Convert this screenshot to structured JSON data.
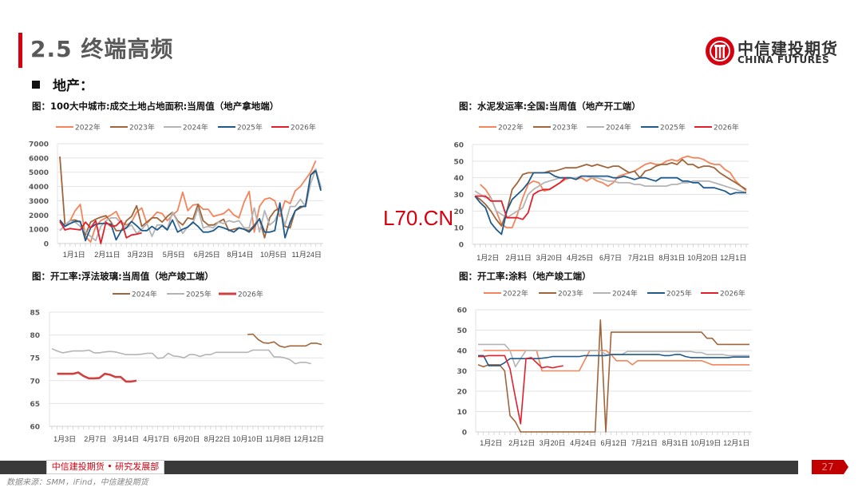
{
  "header": {
    "title": "2.5 终端高频",
    "section": "地产：",
    "logo_cn": "中信建投期货",
    "logo_en": "CHINA FUTURES"
  },
  "watermark": "L70.CN",
  "footer": {
    "dept": "中信建投期货 • 研究发展部",
    "page": "27",
    "source": "数据来源：SMM，iFind，中信建投期货"
  },
  "colors": {
    "y2022": "#F4845A",
    "y2023": "#A0653A",
    "y2024": "#B4B4B4",
    "y2025": "#1F5A8C",
    "y2026": "#E0202C",
    "accent": "#D7000F"
  },
  "chart_data": [
    {
      "type": "line",
      "title": "图：100大中城市:成交土地占地面积:当周值（地产拿地端）",
      "ylim": [
        0,
        7000
      ],
      "ystep": 1000,
      "n_points": 52,
      "x_ticks": [
        {
          "label": "1月1日",
          "i": 0
        },
        {
          "label": "2月11日",
          "i": 6
        },
        {
          "label": "3月23日",
          "i": 12
        },
        {
          "label": "5月5日",
          "i": 18
        },
        {
          "label": "6月25日",
          "i": 25
        },
        {
          "label": "8月14日",
          "i": 32
        },
        {
          "label": "10月5日",
          "i": 39
        },
        {
          "label": "11月24日",
          "i": 46
        }
      ],
      "series": [
        {
          "name": "2022年",
          "color": "#F4845A",
          "values": [
            1500,
            1200,
            1600,
            2300,
            2750,
            500,
            100,
            1200,
            1600,
            1800,
            2000,
            2250,
            1500,
            1300,
            1500,
            2200,
            2500,
            1400,
            1800,
            2200,
            2100,
            1600,
            2000,
            2300,
            3600,
            2300,
            2700,
            2750,
            2400,
            2400,
            1900,
            2000,
            2100,
            2400,
            2000,
            1800,
            2900,
            3650,
            800,
            2600,
            3100,
            3200,
            3000,
            1900,
            3000,
            2800,
            3700,
            4000,
            4500,
            5000,
            5800,
            null
          ]
        },
        {
          "name": "2023年",
          "color": "#A0653A",
          "values": [
            6100,
            1300,
            1600,
            1650,
            1500,
            600,
            1500,
            1700,
            1850,
            1950,
            1500,
            900,
            900,
            1600,
            1900,
            2650,
            1200,
            1500,
            1800,
            1800,
            1500,
            1900,
            2200,
            1600,
            1300,
            1800,
            1700,
            2750,
            1600,
            1300,
            1300,
            1500,
            1700,
            900,
            1000,
            1100,
            1000,
            900,
            1300,
            1700,
            400,
            1800,
            2300,
            2500,
            1200,
            1100,
            2300,
            2500,
            2700,
            4800,
            5200,
            3800
          ]
        },
        {
          "name": "2024年",
          "color": "#B4B4B4",
          "values": [
            900,
            1300,
            1600,
            1500,
            1200,
            800,
            500,
            200,
            1200,
            1600,
            1800,
            1800,
            1400,
            1100,
            1300,
            700,
            1000,
            1400,
            500,
            1300,
            1300,
            1000,
            2200,
            1500,
            700,
            1200,
            1400,
            2500,
            1100,
            1200,
            1100,
            1500,
            1400,
            1600,
            1500,
            1600,
            1100,
            1100,
            2500,
            800,
            2300,
            1300,
            1600,
            2400,
            1300,
            2600,
            2600,
            3100,
            2600,
            4200,
            5200,
            4000
          ]
        },
        {
          "name": "2025年",
          "color": "#1F5A8C",
          "values": [
            1650,
            1200,
            1400,
            1550,
            1550,
            200,
            1100,
            1350,
            1400,
            1400,
            1350,
            250,
            900,
            1100,
            1550,
            1250,
            900,
            900,
            1200,
            950,
            1250,
            950,
            1650,
            800,
            1000,
            1150,
            1500,
            1200,
            800,
            800,
            900,
            1200,
            1100,
            950,
            800,
            1100,
            1000,
            800,
            1200,
            1750,
            800,
            800,
            900,
            2850,
            400,
            1500,
            2300,
            2600,
            2600,
            4800,
            5100,
            3700
          ]
        },
        {
          "name": "2026年",
          "color": "#E0202C",
          "values": [
            1550,
            950,
            1050,
            1000,
            950,
            1500,
            1100,
            1600,
            0,
            1500,
            1200,
            1250,
            1600,
            400,
            600,
            650,
            750
          ]
        }
      ]
    },
    {
      "type": "line",
      "title": "图：水泥发运率:全国:当周值（地产开工端）",
      "ylim": [
        0,
        60
      ],
      "ystep": 10,
      "n_points": 52,
      "x_ticks": [
        {
          "label": "1月2日",
          "i": 0
        },
        {
          "label": "2月11日",
          "i": 6
        },
        {
          "label": "3月20日",
          "i": 11
        },
        {
          "label": "4月25日",
          "i": 16
        },
        {
          "label": "6月7日",
          "i": 22
        },
        {
          "label": "7月21日",
          "i": 28
        },
        {
          "label": "8月31日",
          "i": 34
        },
        {
          "label": "10月20日",
          "i": 40
        },
        {
          "label": "12月1日",
          "i": 46
        }
      ],
      "series": [
        {
          "name": "2022年",
          "color": "#F4845A",
          "values": [
            null,
            36,
            33,
            28,
            20,
            12,
            10,
            10,
            18,
            28,
            36,
            38,
            37,
            32,
            33,
            35,
            37,
            39,
            40,
            39,
            40,
            38,
            40,
            38,
            37,
            35,
            37,
            41,
            42,
            43,
            44,
            46,
            48,
            49,
            48,
            48,
            50,
            51,
            50,
            52,
            53,
            52,
            52,
            51,
            49,
            48,
            48,
            45,
            43,
            38,
            35,
            32
          ]
        },
        {
          "name": "2023年",
          "color": "#A0653A",
          "values": [
            29,
            27,
            24,
            20,
            15,
            11,
            20,
            33,
            37,
            42,
            43,
            43,
            43,
            43,
            44,
            44,
            45,
            46,
            46,
            46,
            47,
            48,
            47,
            48,
            47,
            46,
            47,
            47,
            45,
            43,
            44,
            40,
            44,
            45,
            47,
            48,
            48,
            49,
            48,
            51,
            48,
            48,
            46,
            47,
            47,
            46,
            43,
            41,
            39,
            37,
            35,
            33
          ]
        },
        {
          "name": "2024年",
          "color": "#B4B4B4",
          "values": [
            32,
            30,
            28,
            28,
            20,
            18,
            16,
            18,
            20,
            22,
            30,
            33,
            35,
            37,
            38,
            39,
            40,
            40,
            40,
            40,
            41,
            41,
            40,
            40,
            39,
            38,
            38,
            37,
            37,
            37,
            36,
            36,
            35,
            35,
            35,
            35,
            35,
            36,
            36,
            37,
            37,
            38,
            38,
            38,
            38,
            37,
            36,
            35,
            34,
            33,
            32,
            31
          ]
        },
        {
          "name": "2025年",
          "color": "#1F5A8C",
          "values": [
            29,
            25,
            22,
            13,
            9,
            6,
            20,
            27,
            30,
            33,
            37,
            43,
            43,
            43,
            43,
            41,
            40,
            40,
            40,
            39,
            41,
            41,
            41,
            41,
            41,
            41,
            40,
            40,
            41,
            40,
            39,
            40,
            40,
            39,
            38,
            40,
            40,
            40,
            40,
            38,
            38,
            37,
            37,
            34,
            34,
            34,
            33,
            32,
            30,
            31,
            31,
            31
          ]
        },
        {
          "name": "2026年",
          "color": "#E0202C",
          "values": [
            29,
            29,
            29,
            26,
            26,
            26,
            16,
            16,
            16,
            15,
            19,
            30,
            32,
            33,
            33,
            35,
            37,
            40
          ]
        }
      ]
    },
    {
      "type": "line",
      "title": "图：开工率:浮法玻璃:当周值（地产竣工端）",
      "ylim": [
        60,
        85
      ],
      "ystep": 5,
      "n_points": 52,
      "x_ticks": [
        {
          "label": "1月3日",
          "i": 0
        },
        {
          "label": "2月7日",
          "i": 5
        },
        {
          "label": "3月14日",
          "i": 10
        },
        {
          "label": "4月17日",
          "i": 15
        },
        {
          "label": "6月20日",
          "i": 24
        },
        {
          "label": "8月22日",
          "i": 33
        },
        {
          "label": "10月10日",
          "i": 40
        },
        {
          "label": "11月8日",
          "i": 44
        },
        {
          "label": "12月12日",
          "i": 49
        }
      ],
      "series": [
        {
          "name": "2024年",
          "color": "#A0653A",
          "values": [
            null,
            null,
            null,
            null,
            null,
            null,
            null,
            null,
            null,
            null,
            null,
            null,
            null,
            null,
            null,
            null,
            null,
            null,
            null,
            null,
            null,
            null,
            null,
            null,
            null,
            null,
            null,
            null,
            null,
            null,
            null,
            null,
            null,
            null,
            null,
            null,
            null,
            80.1,
            80.2,
            79,
            78.3,
            78.2,
            78.5,
            77.6,
            77.3,
            77.6,
            77.6,
            77.6,
            77.6,
            78.2,
            78.2,
            77.9
          ]
        },
        {
          "name": "2025年",
          "color": "#B4B4B4",
          "values": [
            77,
            76.5,
            76.1,
            76.3,
            76.5,
            76.5,
            76.5,
            76.7,
            76.1,
            76.1,
            76.3,
            76.4,
            76.3,
            76,
            75.7,
            75.7,
            75.7,
            75.8,
            76,
            76,
            74.9,
            75,
            76,
            75.4,
            75.3,
            75,
            75.7,
            75.7,
            75.3,
            75.7,
            75.7,
            76.2,
            76.2,
            76.2,
            76.2,
            76.2,
            76.2,
            76.2,
            76.7,
            76.7,
            76.7,
            76.7,
            75.2,
            75.2,
            75,
            74.6,
            73.7,
            74,
            74,
            73.7
          ]
        },
        {
          "name": "2026年",
          "color": "#D04040",
          "values": [
            null,
            71.5,
            71.5,
            71.5,
            71.5,
            71.8,
            71,
            70.5,
            70.5,
            70.6,
            71.5,
            71.3,
            70.8,
            70.8,
            69.8,
            69.8,
            70
          ]
        }
      ]
    },
    {
      "type": "line",
      "title": "图：开工率:涂料（地产竣工端）",
      "ylim": [
        0,
        60
      ],
      "ystep": 10,
      "n_points": 52,
      "x_ticks": [
        {
          "label": "1月2日",
          "i": 0
        },
        {
          "label": "2月12日",
          "i": 6
        },
        {
          "label": "3月20日",
          "i": 11
        },
        {
          "label": "4月24日",
          "i": 16
        },
        {
          "label": "6月12日",
          "i": 23
        },
        {
          "label": "7月21日",
          "i": 28
        },
        {
          "label": "8月31日",
          "i": 34
        },
        {
          "label": "10月19日",
          "i": 41
        },
        {
          "label": "12月1日",
          "i": 47
        }
      ],
      "series": [
        {
          "name": "2022年",
          "color": "#F4845A",
          "values": [
            null,
            40,
            40,
            40,
            40,
            40,
            40,
            40,
            40,
            40,
            40,
            40,
            30,
            30,
            30,
            30,
            30,
            30,
            30,
            30,
            35,
            40,
            40,
            40,
            40,
            38,
            35,
            35,
            35,
            33,
            35,
            35,
            35,
            35,
            35,
            35,
            35,
            35,
            35,
            35,
            35,
            35,
            35,
            34,
            33,
            33,
            33,
            33,
            33,
            33,
            33,
            33
          ]
        },
        {
          "name": "2023年",
          "color": "#A0653A",
          "values": [
            33,
            32,
            33,
            33,
            33,
            30,
            8,
            5,
            0,
            0,
            0,
            0,
            0,
            0,
            0,
            0,
            0,
            0,
            0,
            0,
            0,
            0,
            0,
            55,
            0,
            49,
            49,
            49,
            49,
            49,
            49,
            49,
            49,
            49,
            49,
            49,
            49,
            49,
            49,
            49,
            49,
            49,
            49,
            46,
            46,
            43,
            43,
            43,
            43,
            43,
            43,
            43
          ]
        },
        {
          "name": "2024年",
          "color": "#B4B4B4",
          "values": [
            43,
            43,
            43,
            43,
            43,
            43,
            40,
            32,
            36,
            40,
            40,
            40,
            40,
            40,
            40,
            40,
            40,
            40,
            40,
            40,
            40,
            40,
            40,
            40,
            38,
            38,
            38,
            38,
            39.5,
            39.5,
            39.5,
            39.5,
            39.5,
            39.5,
            39.5,
            39.5,
            39.5,
            39.5,
            39.5,
            39.5,
            39.5,
            39,
            39,
            38,
            38,
            38,
            38,
            37.5,
            37.5,
            37.5,
            37.5,
            37.5
          ]
        },
        {
          "name": "2025年",
          "color": "#1F5A8C",
          "values": [
            37.5,
            37.5,
            32.5,
            32.5,
            32.5,
            34,
            36,
            36,
            36,
            36,
            36,
            36,
            36.2,
            36.5,
            37,
            37,
            37,
            37,
            37,
            37,
            37.5,
            37.5,
            37.5,
            37.5,
            37.5,
            38,
            38,
            38,
            38,
            38,
            38,
            38,
            38,
            38,
            38,
            37.5,
            37.5,
            38,
            38,
            37,
            36.5,
            36.5,
            36.5,
            36.5,
            36.5,
            36.5,
            36.5,
            36.5,
            36.8,
            36.8,
            36.8,
            36.8
          ]
        },
        {
          "name": "2026年",
          "color": "#E0202C",
          "values": [
            37,
            37,
            37.5,
            37.5,
            37.5,
            37.5,
            31,
            17,
            4,
            36,
            36.5,
            34,
            31.5,
            32,
            31.5,
            32,
            32.5
          ]
        }
      ]
    }
  ]
}
